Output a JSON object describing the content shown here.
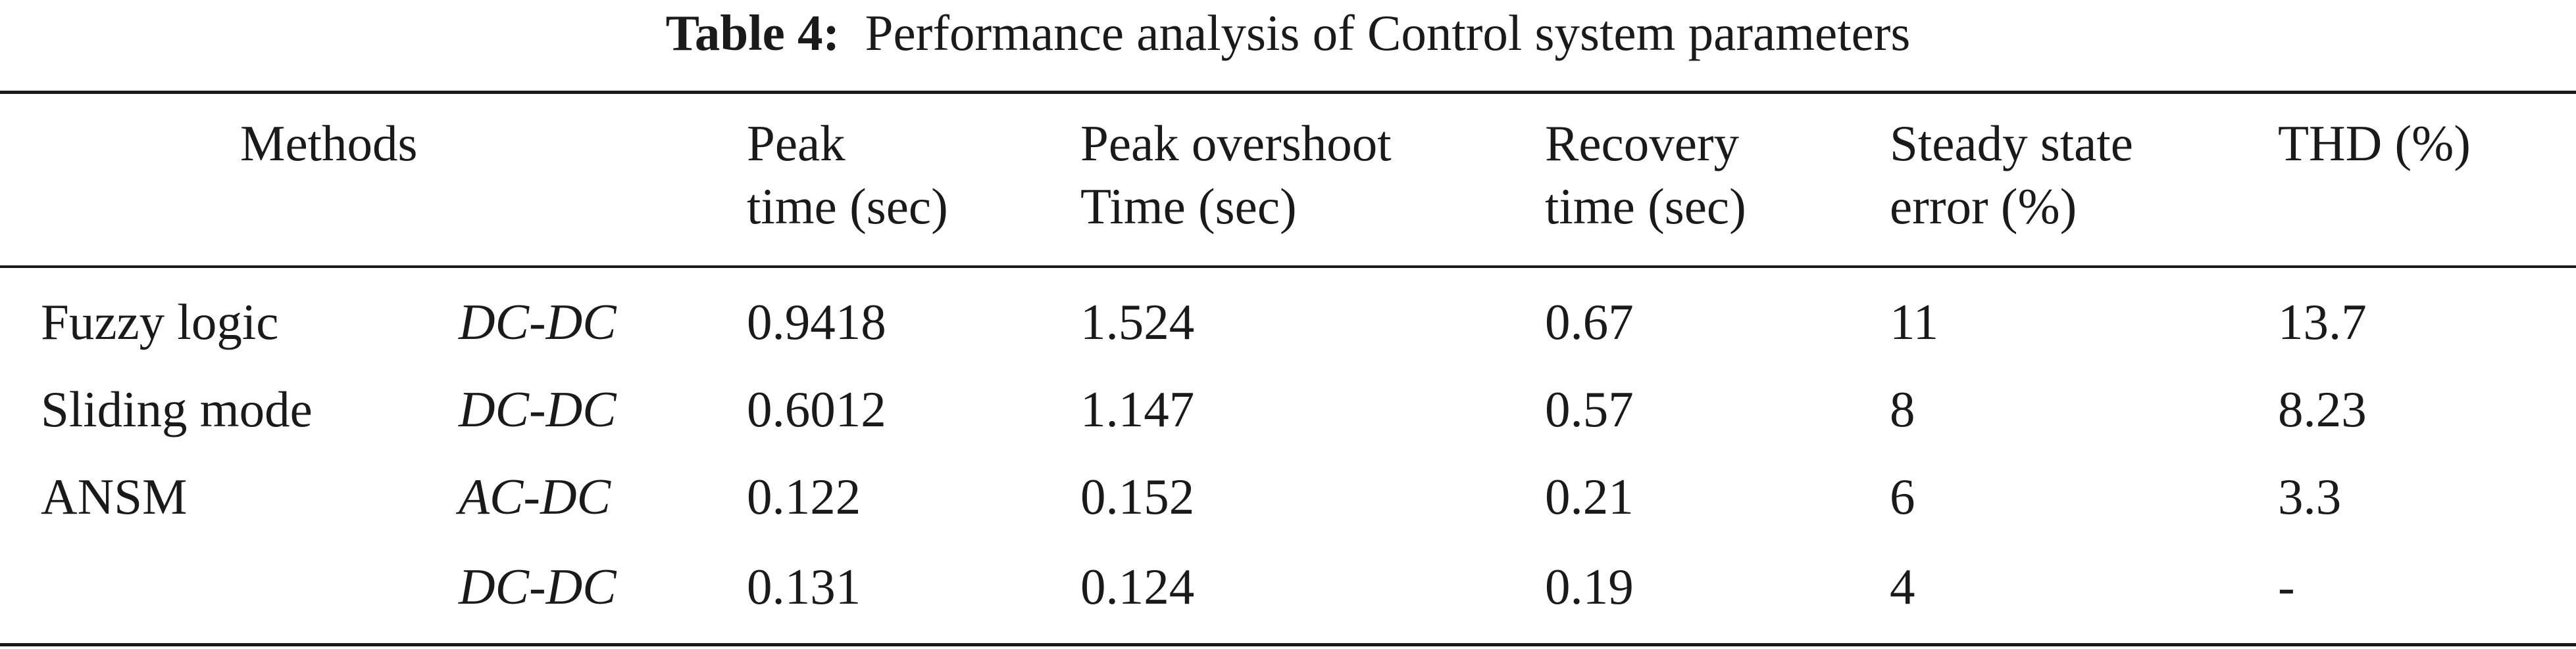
{
  "caption": {
    "label": "Table 4:",
    "text": "Performance analysis of Control system parameters"
  },
  "table": {
    "headers": {
      "methods": "Methods",
      "peak_time": [
        "Peak",
        "time (sec)"
      ],
      "peak_overshoot": [
        "Peak overshoot",
        "Time (sec)"
      ],
      "recovery": [
        "Recovery",
        "time (sec)"
      ],
      "steady_state": [
        "Steady state",
        "error (%)"
      ],
      "thd": "THD (%)"
    },
    "rows": [
      {
        "method": "Fuzzy logic",
        "converter": "DC-DC",
        "peak_time": "0.9418",
        "peak_overshoot": "1.524",
        "recovery": "0.67",
        "steady_state": "11",
        "thd": "13.7"
      },
      {
        "method": "Sliding mode",
        "converter": "DC-DC",
        "peak_time": "0.6012",
        "peak_overshoot": "1.147",
        "recovery": "0.57",
        "steady_state": "8",
        "thd": "8.23"
      },
      {
        "method": "ANSM",
        "converter": "AC-DC",
        "peak_time": "0.122",
        "peak_overshoot": "0.152",
        "recovery": "0.21",
        "steady_state": "6",
        "thd": "3.3"
      },
      {
        "method": "",
        "converter": "DC-DC",
        "peak_time": "0.131",
        "peak_overshoot": "0.124",
        "recovery": "0.19",
        "steady_state": "4",
        "thd": "-"
      }
    ]
  }
}
